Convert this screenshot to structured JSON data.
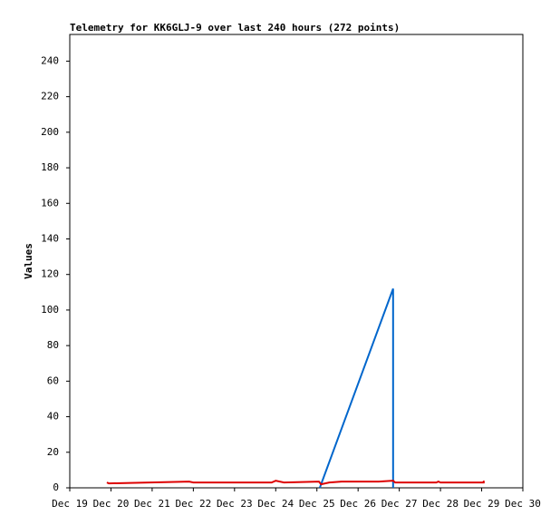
{
  "chart_data": {
    "type": "line",
    "title": "Telemetry for KK6GLJ-9 over last 240 hours (272 points)",
    "y_label": "Values",
    "xlim": [
      19,
      30
    ],
    "xticks": [
      {
        "value": 19,
        "label": "Dec 19"
      },
      {
        "value": 20,
        "label": "Dec 20"
      },
      {
        "value": 21,
        "label": "Dec 21"
      },
      {
        "value": 22,
        "label": "Dec 22"
      },
      {
        "value": 23,
        "label": "Dec 23"
      },
      {
        "value": 24,
        "label": "Dec 24"
      },
      {
        "value": 25,
        "label": "Dec 25"
      },
      {
        "value": 26,
        "label": "Dec 26"
      },
      {
        "value": 27,
        "label": "Dec 27"
      },
      {
        "value": 28,
        "label": "Dec 28"
      },
      {
        "value": 29,
        "label": "Dec 29"
      },
      {
        "value": 30,
        "label": "Dec 30"
      }
    ],
    "ylim": [
      0,
      255
    ],
    "yticks": [
      0,
      20,
      40,
      60,
      80,
      100,
      120,
      140,
      160,
      180,
      200,
      220,
      240
    ],
    "series": [
      {
        "color": "#0066cc",
        "x": [
          25.07,
          26.85,
          26.85
        ],
        "values": [
          0,
          112,
          0
        ]
      },
      {
        "color": "#dd0000",
        "x": [
          19.9,
          19.95,
          21.9,
          22.0,
          23.9,
          24.0,
          24.2,
          25.05,
          25.1,
          25.3,
          25.6,
          26.5,
          26.85,
          26.9,
          27.9,
          27.95,
          28.0,
          29.05,
          29.05
        ],
        "values": [
          3,
          2.5,
          3.5,
          3,
          3,
          4,
          3,
          3.5,
          2,
          3,
          3.5,
          3.5,
          4,
          3,
          3,
          3.5,
          3,
          3,
          4
        ]
      }
    ]
  }
}
